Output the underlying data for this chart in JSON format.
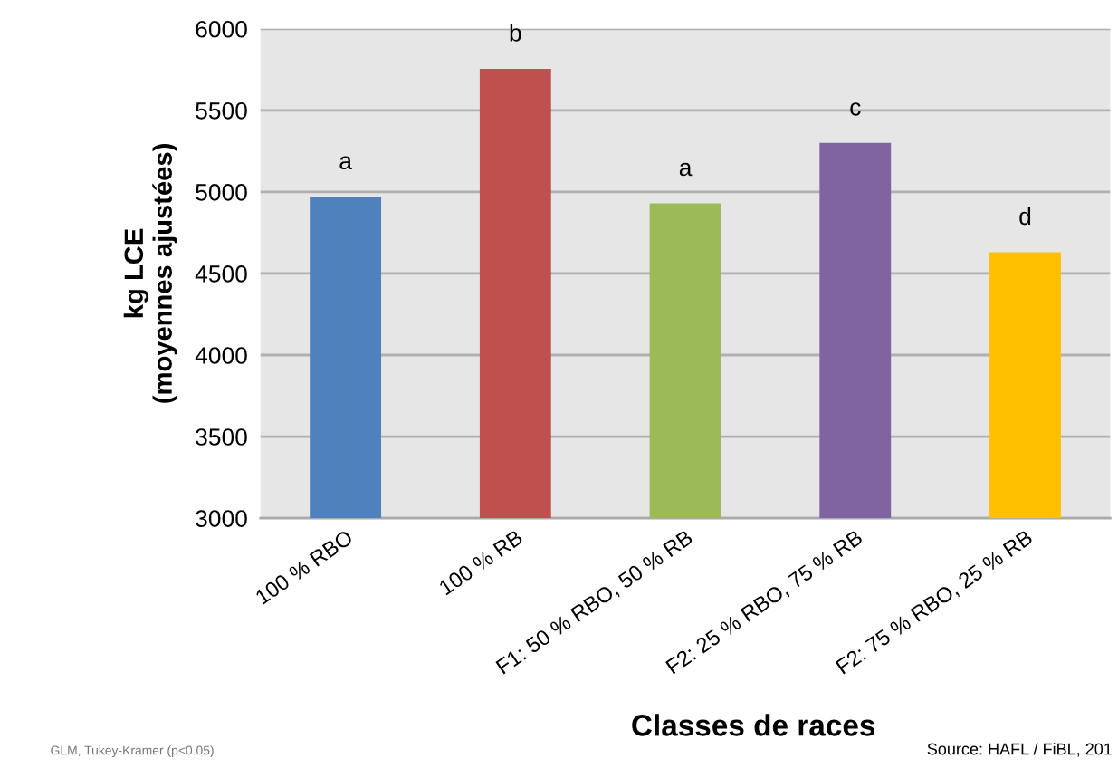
{
  "chart_data": {
    "type": "bar",
    "xlabel": "Classes de races",
    "ylabel": "kg LCE\n(moyennes ajustées)",
    "categories": [
      "100 % RBO",
      "100 % RB",
      "F1: 50 % RBO, 50 % RB",
      "F2: 25 % RBO, 75 % RB",
      "F2: 75 % RBO, 25 % RB"
    ],
    "values": [
      4970,
      5755,
      4930,
      5300,
      4630
    ],
    "colors": [
      "#4f81bd",
      "#c0504d",
      "#9bbb59",
      "#8064a2",
      "#ffc000"
    ],
    "ylim": [
      3000,
      6000
    ],
    "yticks": [
      3000,
      3500,
      4000,
      4500,
      5000,
      5500,
      6000
    ],
    "grid": "y",
    "legend": false,
    "annotations": [
      {
        "text": "a",
        "x": "100 % RBO",
        "y": 4970
      },
      {
        "text": "b",
        "x": "100 % RB",
        "y": 5755
      },
      {
        "text": "a",
        "x": "F1: 50 % RBO, 50 % RB",
        "y": 4930
      },
      {
        "text": "c",
        "x": "F2: 25 % RBO, 75 % RB",
        "y": 5300
      },
      {
        "text": "d",
        "x": "F2: 75 % RBO, 25 % RB",
        "y": 4630
      },
      "GLM, Tukey-Kramer (p<0.05)",
      "Source: HAFL / FiBL, 201"
    ]
  }
}
